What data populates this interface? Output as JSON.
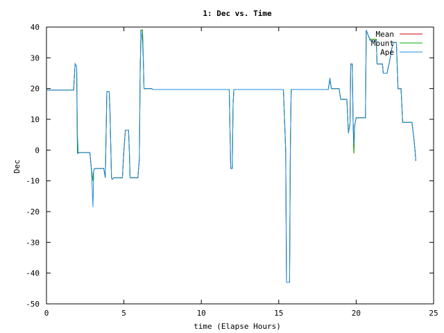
{
  "chart_data": {
    "type": "line",
    "title": "1: Dec vs. Time",
    "xlabel": "time (Elapse Hours)",
    "ylabel": "Dec",
    "xlim": [
      0,
      25
    ],
    "ylim": [
      -50,
      40
    ],
    "xticks": [
      0,
      5,
      10,
      15,
      20,
      25
    ],
    "yticks": [
      -50,
      -40,
      -30,
      -20,
      -10,
      0,
      10,
      20,
      30,
      40
    ],
    "grid": false,
    "legend_position": "top-right",
    "series": [
      {
        "name": "Mean",
        "color": "#cc0000",
        "points": [
          [
            0,
            19.5
          ],
          [
            1.75,
            19.5
          ],
          [
            1.85,
            28
          ],
          [
            1.95,
            27
          ],
          [
            2.0,
            -1
          ],
          [
            2.05,
            -1
          ],
          [
            2.1,
            -0.8
          ],
          [
            2.8,
            -0.8
          ],
          [
            2.9,
            -6
          ],
          [
            3.0,
            -10
          ],
          [
            3.05,
            -6.5
          ],
          [
            3.1,
            -6
          ],
          [
            3.7,
            -6
          ],
          [
            3.8,
            -9
          ],
          [
            3.9,
            19
          ],
          [
            4.05,
            19
          ],
          [
            4.1,
            13
          ],
          [
            4.2,
            -9
          ],
          [
            4.25,
            -9.5
          ],
          [
            4.35,
            -9
          ],
          [
            4.9,
            -9
          ],
          [
            5.0,
            0
          ],
          [
            5.1,
            6.5
          ],
          [
            5.3,
            6.5
          ],
          [
            5.35,
            0
          ],
          [
            5.4,
            -9
          ],
          [
            5.9,
            -9
          ],
          [
            6.0,
            -3
          ],
          [
            6.05,
            25
          ],
          [
            6.1,
            39
          ],
          [
            6.2,
            39
          ],
          [
            6.25,
            30
          ],
          [
            6.3,
            20
          ],
          [
            6.8,
            20
          ],
          [
            6.85,
            19.7
          ],
          [
            11.8,
            19.7
          ],
          [
            11.9,
            -6
          ],
          [
            12.0,
            -6
          ],
          [
            12.05,
            15
          ],
          [
            12.1,
            19.7
          ],
          [
            15.3,
            19.7
          ],
          [
            15.45,
            0
          ],
          [
            15.5,
            -43
          ],
          [
            15.7,
            -43
          ],
          [
            15.75,
            0
          ],
          [
            15.8,
            19.7
          ],
          [
            18.2,
            19.7
          ],
          [
            18.3,
            23
          ],
          [
            18.4,
            20
          ],
          [
            18.9,
            20
          ],
          [
            19.0,
            16.5
          ],
          [
            19.4,
            16.5
          ],
          [
            19.5,
            5.5
          ],
          [
            19.6,
            8.5
          ],
          [
            19.65,
            28
          ],
          [
            19.75,
            28
          ],
          [
            19.8,
            10
          ],
          [
            19.85,
            -1
          ],
          [
            19.9,
            8
          ],
          [
            20.0,
            10.5
          ],
          [
            20.6,
            10.5
          ],
          [
            20.65,
            39
          ],
          [
            20.8,
            37
          ],
          [
            20.9,
            36
          ],
          [
            21.3,
            36
          ],
          [
            21.35,
            28
          ],
          [
            21.7,
            28
          ],
          [
            21.75,
            25
          ],
          [
            22.0,
            25
          ],
          [
            22.05,
            26.5
          ],
          [
            22.1,
            27.5
          ],
          [
            22.2,
            30
          ],
          [
            22.3,
            33
          ],
          [
            22.4,
            35
          ],
          [
            22.6,
            35
          ],
          [
            22.7,
            20
          ],
          [
            22.9,
            20
          ],
          [
            23.0,
            9
          ],
          [
            23.6,
            9
          ],
          [
            23.7,
            5
          ],
          [
            23.8,
            0
          ],
          [
            23.85,
            -3.5
          ]
        ]
      },
      {
        "name": "Mount",
        "color": "#00aa00",
        "points": [
          [
            0,
            19.5
          ],
          [
            1.75,
            19.5
          ],
          [
            1.85,
            28
          ],
          [
            1.95,
            27
          ],
          [
            2.0,
            -1
          ],
          [
            2.05,
            -1
          ],
          [
            2.1,
            -0.8
          ],
          [
            2.8,
            -0.8
          ],
          [
            2.9,
            -6
          ],
          [
            3.0,
            -10
          ],
          [
            3.05,
            -6.5
          ],
          [
            3.1,
            -6
          ],
          [
            3.7,
            -6
          ],
          [
            3.8,
            -9
          ],
          [
            3.9,
            19
          ],
          [
            4.05,
            19
          ],
          [
            4.1,
            13
          ],
          [
            4.2,
            -9
          ],
          [
            4.25,
            -9.5
          ],
          [
            4.35,
            -9
          ],
          [
            4.9,
            -9
          ],
          [
            5.0,
            0
          ],
          [
            5.1,
            6.5
          ],
          [
            5.3,
            6.5
          ],
          [
            5.35,
            0
          ],
          [
            5.4,
            -9
          ],
          [
            5.9,
            -9
          ],
          [
            6.0,
            -3
          ],
          [
            6.05,
            25
          ],
          [
            6.1,
            39
          ],
          [
            6.2,
            39
          ],
          [
            6.25,
            30
          ],
          [
            6.3,
            20
          ],
          [
            6.8,
            20
          ],
          [
            6.85,
            19.7
          ],
          [
            11.8,
            19.7
          ],
          [
            11.9,
            -6
          ],
          [
            12.0,
            -6
          ],
          [
            12.05,
            15
          ],
          [
            12.1,
            19.7
          ],
          [
            15.3,
            19.7
          ],
          [
            15.45,
            0
          ],
          [
            15.5,
            -43
          ],
          [
            15.7,
            -43
          ],
          [
            15.75,
            0
          ],
          [
            15.8,
            19.7
          ],
          [
            18.2,
            19.7
          ],
          [
            18.3,
            23
          ],
          [
            18.4,
            20
          ],
          [
            18.9,
            20
          ],
          [
            19.0,
            16.5
          ],
          [
            19.4,
            16.5
          ],
          [
            19.5,
            5.5
          ],
          [
            19.6,
            8.5
          ],
          [
            19.65,
            28
          ],
          [
            19.75,
            28
          ],
          [
            19.8,
            10
          ],
          [
            19.85,
            -1
          ],
          [
            19.9,
            8
          ],
          [
            20.0,
            10.5
          ],
          [
            20.6,
            10.5
          ],
          [
            20.65,
            39
          ],
          [
            20.8,
            37
          ],
          [
            20.9,
            36
          ],
          [
            21.3,
            36
          ],
          [
            21.35,
            28
          ],
          [
            21.7,
            28
          ],
          [
            21.75,
            25
          ],
          [
            22.0,
            25
          ],
          [
            22.05,
            26.5
          ],
          [
            22.1,
            27.5
          ],
          [
            22.2,
            30
          ],
          [
            22.3,
            33
          ],
          [
            22.4,
            35
          ],
          [
            22.6,
            35
          ],
          [
            22.7,
            20
          ],
          [
            22.9,
            20
          ],
          [
            23.0,
            9
          ],
          [
            23.6,
            9
          ],
          [
            23.7,
            5
          ],
          [
            23.8,
            0
          ],
          [
            23.85,
            -3.5
          ]
        ]
      },
      {
        "name": "Ape",
        "color": "#1e88e5",
        "points": [
          [
            0,
            19.5
          ],
          [
            1.75,
            19.5
          ],
          [
            1.85,
            28
          ],
          [
            1.95,
            27
          ],
          [
            2.0,
            5
          ],
          [
            2.05,
            -1
          ],
          [
            2.1,
            -0.8
          ],
          [
            2.8,
            -0.8
          ],
          [
            2.9,
            -6
          ],
          [
            3.0,
            -18.5
          ],
          [
            3.05,
            -6.5
          ],
          [
            3.1,
            -6
          ],
          [
            3.7,
            -6
          ],
          [
            3.8,
            -9
          ],
          [
            3.9,
            19
          ],
          [
            4.05,
            19
          ],
          [
            4.1,
            13
          ],
          [
            4.2,
            -9
          ],
          [
            4.25,
            -9.5
          ],
          [
            4.35,
            -9
          ],
          [
            4.9,
            -9
          ],
          [
            5.0,
            0
          ],
          [
            5.1,
            6.5
          ],
          [
            5.3,
            6.5
          ],
          [
            5.35,
            0
          ],
          [
            5.4,
            -9
          ],
          [
            5.9,
            -9
          ],
          [
            6.0,
            -3
          ],
          [
            6.05,
            25
          ],
          [
            6.1,
            39
          ],
          [
            6.2,
            35
          ],
          [
            6.25,
            30
          ],
          [
            6.3,
            20
          ],
          [
            6.8,
            20
          ],
          [
            6.85,
            19.7
          ],
          [
            11.8,
            19.7
          ],
          [
            11.9,
            -6
          ],
          [
            12.0,
            -6
          ],
          [
            12.05,
            15
          ],
          [
            12.1,
            19.7
          ],
          [
            15.3,
            19.7
          ],
          [
            15.45,
            0
          ],
          [
            15.5,
            -43
          ],
          [
            15.7,
            -43
          ],
          [
            15.75,
            0
          ],
          [
            15.8,
            19.7
          ],
          [
            18.2,
            19.7
          ],
          [
            18.3,
            23.5
          ],
          [
            18.4,
            20
          ],
          [
            18.9,
            20
          ],
          [
            19.0,
            16.5
          ],
          [
            19.4,
            16.5
          ],
          [
            19.5,
            5.5
          ],
          [
            19.6,
            8.5
          ],
          [
            19.65,
            28
          ],
          [
            19.75,
            28
          ],
          [
            19.8,
            10
          ],
          [
            19.85,
            2
          ],
          [
            19.9,
            8
          ],
          [
            20.0,
            10.5
          ],
          [
            20.6,
            10.5
          ],
          [
            20.65,
            39
          ],
          [
            20.8,
            37
          ],
          [
            20.9,
            35.5
          ],
          [
            21.3,
            35.5
          ],
          [
            21.35,
            28
          ],
          [
            21.7,
            28
          ],
          [
            21.75,
            25
          ],
          [
            22.0,
            25
          ],
          [
            22.05,
            26.5
          ],
          [
            22.1,
            27.5
          ],
          [
            22.2,
            30
          ],
          [
            22.3,
            33
          ],
          [
            22.4,
            35
          ],
          [
            22.6,
            35
          ],
          [
            22.7,
            20
          ],
          [
            22.9,
            20
          ],
          [
            23.0,
            9
          ],
          [
            23.6,
            9
          ],
          [
            23.7,
            5
          ],
          [
            23.8,
            0
          ],
          [
            23.85,
            -3.5
          ]
        ]
      }
    ]
  }
}
